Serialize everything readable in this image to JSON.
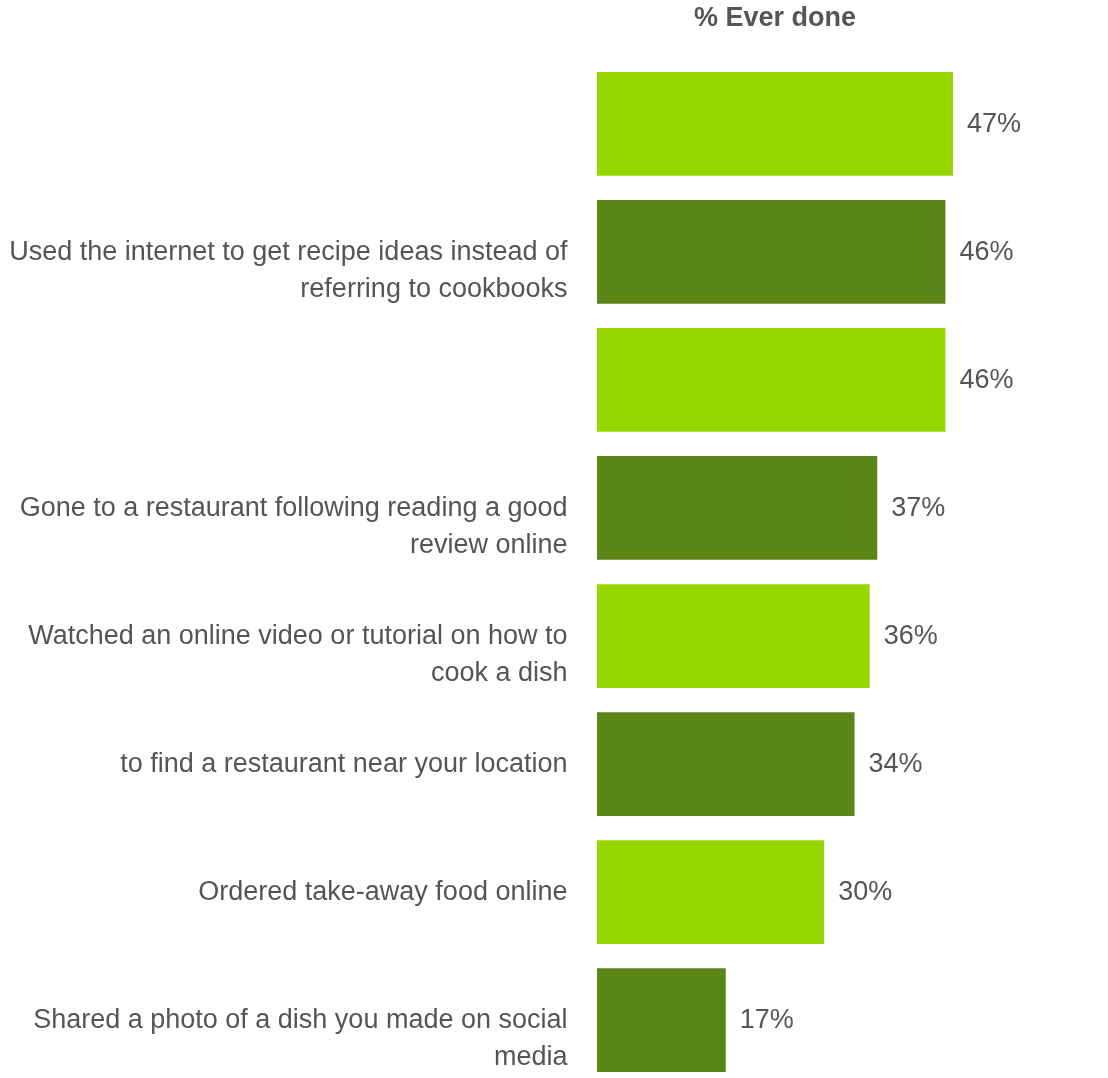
{
  "chart_data": {
    "type": "bar",
    "orientation": "horizontal",
    "title": "% Ever done",
    "categories": [
      null,
      "Used the internet to get recipe ideas instead of referring to cookbooks",
      null,
      "Gone to a restaurant following reading a good review online",
      "Watched an online video or tutorial on how to cook a dish",
      "to find a restaurant near your location",
      "Ordered take-away food online",
      "Shared a photo of a dish you made on social media"
    ],
    "values": [
      47,
      46,
      46,
      37,
      36,
      34,
      30,
      17
    ],
    "colors": [
      "#97d700",
      "#5b8516",
      "#97d700",
      "#5b8516",
      "#97d700",
      "#5b8516",
      "#97d700",
      "#5b8516"
    ],
    "value_labels": [
      "47%",
      "46%",
      "46%",
      "37%",
      "36%",
      "34%",
      "30%",
      "17%"
    ],
    "grid": false
  }
}
